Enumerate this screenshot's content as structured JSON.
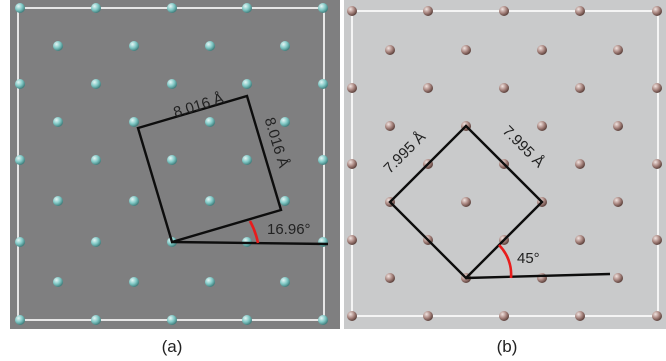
{
  "panels": [
    {
      "id": "a",
      "caption": "(a)",
      "background": "#7f7f80",
      "atom_color": "#7fc7c4",
      "atom_highlight": "#e4f6f5",
      "lattice_length_top": "8.016 Å",
      "lattice_length_right": "8.016 Å",
      "angle_label": "16.96°",
      "rotation_deg": 16.96
    },
    {
      "id": "b",
      "caption": "(b)",
      "background": "#c9cacb",
      "atom_color": "#a8857f",
      "atom_highlight": "#f1e4e1",
      "lattice_length_top": "7.995 Å",
      "lattice_length_right": "7.995 Å",
      "angle_label": "45°",
      "rotation_deg": 45
    }
  ],
  "colors": {
    "cell_line": "#0d0d0d",
    "frame_line": "#ffffff",
    "angle_arc": "#e81c1c",
    "label_text": "#222222"
  }
}
